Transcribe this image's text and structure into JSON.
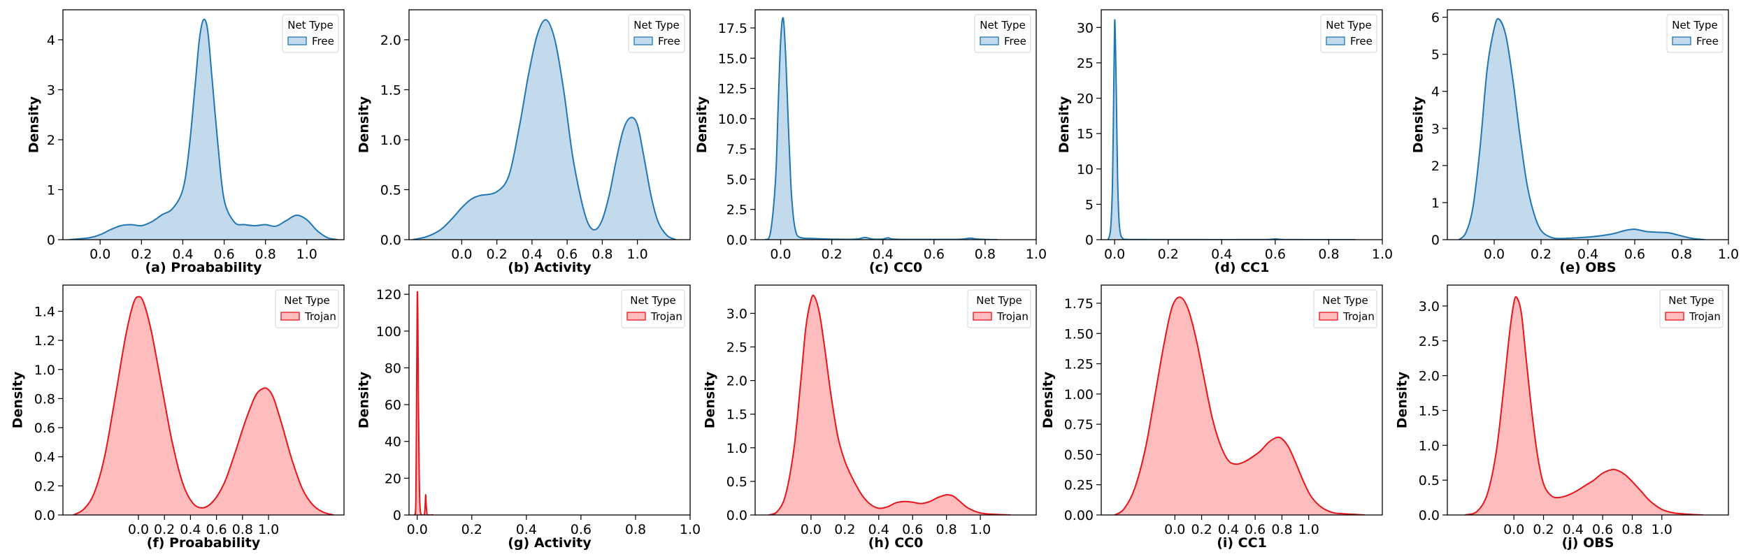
{
  "colors": {
    "free_line": "#1f77b4",
    "free_fill": "#c3d9ec",
    "trojan_line": "#e8141b",
    "trojan_fill": "#ffbcbc"
  },
  "chart_data": [
    {
      "type": "area",
      "kind": "kde",
      "panel": "(a)",
      "xlabel": "(a) Proabability",
      "ylabel": "Density",
      "legend_title": "Net Type",
      "legend_label": "Free",
      "legend_position": "top-right",
      "palette": "free",
      "xlim": [
        -0.18,
        1.18
      ],
      "ylim": [
        0,
        4.6
      ],
      "xticks": [
        0.0,
        0.2,
        0.4,
        0.6,
        0.8,
        1.0
      ],
      "xtick_labels": [
        "0.0",
        "0.2",
        "0.4",
        "0.6",
        "0.8",
        "1.0"
      ],
      "yticks": [
        0,
        1,
        2,
        3,
        4
      ],
      "ytick_labels": [
        "0",
        "1",
        "2",
        "3",
        "4"
      ],
      "x": [
        -0.15,
        -0.05,
        0.0,
        0.05,
        0.1,
        0.15,
        0.2,
        0.25,
        0.3,
        0.35,
        0.4,
        0.43,
        0.46,
        0.48,
        0.5,
        0.52,
        0.54,
        0.57,
        0.6,
        0.65,
        0.7,
        0.75,
        0.8,
        0.85,
        0.9,
        0.95,
        1.0,
        1.05,
        1.1,
        1.15
      ],
      "y": [
        0.0,
        0.04,
        0.1,
        0.2,
        0.28,
        0.3,
        0.28,
        0.36,
        0.5,
        0.62,
        1.0,
        1.8,
        3.1,
        4.0,
        4.4,
        4.2,
        3.3,
        1.9,
        0.8,
        0.35,
        0.3,
        0.28,
        0.3,
        0.27,
        0.38,
        0.49,
        0.4,
        0.18,
        0.04,
        0.0
      ]
    },
    {
      "type": "area",
      "kind": "kde",
      "panel": "(b)",
      "xlabel": "(b) Activity",
      "ylabel": "Density",
      "legend_title": "Net Type",
      "legend_label": "Free",
      "legend_position": "top-right",
      "palette": "free",
      "xlim": [
        -0.3,
        1.3
      ],
      "ylim": [
        0,
        2.3
      ],
      "xticks": [
        0.0,
        0.2,
        0.4,
        0.6,
        0.8,
        1.0
      ],
      "xtick_labels": [
        "0.0",
        "0.2",
        "0.4",
        "0.6",
        "0.8",
        "1.0"
      ],
      "yticks": [
        0.0,
        0.5,
        1.0,
        1.5,
        2.0
      ],
      "ytick_labels": [
        "0.0",
        "0.5",
        "1.0",
        "1.5",
        "2.0"
      ],
      "x": [
        -0.28,
        -0.2,
        -0.12,
        -0.05,
        0.0,
        0.05,
        0.1,
        0.2,
        0.27,
        0.33,
        0.38,
        0.43,
        0.48,
        0.53,
        0.58,
        0.63,
        0.68,
        0.72,
        0.76,
        0.8,
        0.84,
        0.88,
        0.92,
        0.96,
        1.0,
        1.04,
        1.08,
        1.12,
        1.17,
        1.22
      ],
      "y": [
        0.0,
        0.03,
        0.1,
        0.22,
        0.32,
        0.4,
        0.44,
        0.48,
        0.65,
        1.15,
        1.65,
        2.05,
        2.2,
        2.0,
        1.5,
        0.85,
        0.4,
        0.16,
        0.1,
        0.2,
        0.45,
        0.8,
        1.1,
        1.22,
        1.15,
        0.8,
        0.42,
        0.17,
        0.04,
        0.0
      ]
    },
    {
      "type": "area",
      "kind": "kde",
      "panel": "(c)",
      "xlabel": "(c) CC0",
      "ylabel": "Density",
      "legend_title": "Net Type",
      "legend_label": "Free",
      "legend_position": "top-right",
      "palette": "free",
      "xlim": [
        -0.1,
        1.0
      ],
      "ylim": [
        0,
        19.0
      ],
      "xticks": [
        0.0,
        0.2,
        0.4,
        0.6,
        0.8,
        1.0
      ],
      "xtick_labels": [
        "0.0",
        "0.2",
        "0.4",
        "0.6",
        "0.8",
        "1.0"
      ],
      "yticks": [
        0.0,
        2.5,
        5.0,
        7.5,
        10.0,
        12.5,
        15.0,
        17.5
      ],
      "ytick_labels": [
        "0.0",
        "2.5",
        "5.0",
        "7.5",
        "10.0",
        "12.5",
        "15.0",
        "17.5"
      ],
      "x": [
        -0.06,
        -0.04,
        -0.02,
        -0.01,
        0.0,
        0.01,
        0.02,
        0.03,
        0.04,
        0.05,
        0.06,
        0.07,
        0.09,
        0.12,
        0.18,
        0.25,
        0.3,
        0.33,
        0.36,
        0.4,
        0.42,
        0.44,
        0.5,
        0.6,
        0.7,
        0.74,
        0.77,
        0.8,
        0.85
      ],
      "y": [
        0.0,
        0.6,
        5.0,
        11.0,
        16.5,
        18.3,
        15.0,
        9.5,
        4.5,
        1.8,
        0.6,
        0.25,
        0.12,
        0.1,
        0.05,
        0.03,
        0.05,
        0.18,
        0.05,
        0.05,
        0.15,
        0.05,
        0.02,
        0.02,
        0.03,
        0.12,
        0.05,
        0.02,
        0.0
      ]
    },
    {
      "type": "area",
      "kind": "kde",
      "panel": "(d)",
      "xlabel": "(d) CC1",
      "ylabel": "Density",
      "legend_title": "Net Type",
      "legend_label": "Free",
      "legend_position": "top-right",
      "palette": "free",
      "xlim": [
        -0.05,
        1.0
      ],
      "ylim": [
        0,
        32.5
      ],
      "xticks": [
        0.0,
        0.2,
        0.4,
        0.6,
        0.8,
        1.0
      ],
      "xtick_labels": [
        "0.0",
        "0.2",
        "0.4",
        "0.6",
        "0.8",
        "1.0"
      ],
      "yticks": [
        0,
        5,
        10,
        15,
        20,
        25,
        30
      ],
      "ytick_labels": [
        "0",
        "5",
        "10",
        "15",
        "20",
        "25",
        "30"
      ],
      "x": [
        -0.025,
        -0.015,
        -0.008,
        -0.003,
        0.0,
        0.003,
        0.007,
        0.011,
        0.016,
        0.022,
        0.03,
        0.04,
        0.1,
        0.3,
        0.55,
        0.6,
        0.65,
        0.9
      ],
      "y": [
        0.0,
        1.5,
        8.0,
        22.0,
        30.8,
        28.0,
        19.0,
        9.0,
        3.0,
        0.8,
        0.2,
        0.05,
        0.02,
        0.01,
        0.01,
        0.1,
        0.01,
        0.0
      ]
    },
    {
      "type": "area",
      "kind": "kde",
      "panel": "(e)",
      "xlabel": "(e) OBS",
      "ylabel": "Density",
      "legend_title": "Net Type",
      "legend_label": "Free",
      "legend_position": "top-right",
      "palette": "free",
      "xlim": [
        -0.2,
        1.0
      ],
      "ylim": [
        0,
        6.2
      ],
      "xticks": [
        0.0,
        0.2,
        0.4,
        0.6,
        0.8,
        1.0
      ],
      "xtick_labels": [
        "0.0",
        "0.2",
        "0.4",
        "0.6",
        "0.8",
        "1.0"
      ],
      "yticks": [
        0,
        1,
        2,
        3,
        4,
        5,
        6
      ],
      "ytick_labels": [
        "0",
        "1",
        "2",
        "3",
        "4",
        "5",
        "6"
      ],
      "x": [
        -0.15,
        -0.12,
        -0.09,
        -0.06,
        -0.03,
        0.0,
        0.02,
        0.05,
        0.08,
        0.11,
        0.14,
        0.17,
        0.2,
        0.24,
        0.28,
        0.35,
        0.42,
        0.5,
        0.56,
        0.6,
        0.65,
        0.7,
        0.75,
        0.8,
        0.85,
        0.9
      ],
      "y": [
        0.0,
        0.2,
        0.9,
        2.5,
        4.6,
        5.7,
        5.95,
        5.5,
        4.3,
        2.8,
        1.5,
        0.7,
        0.25,
        0.07,
        0.03,
        0.05,
        0.08,
        0.15,
        0.25,
        0.28,
        0.22,
        0.2,
        0.18,
        0.1,
        0.03,
        0.0
      ]
    },
    {
      "type": "area",
      "kind": "kde",
      "panel": "(f)",
      "xlabel": "(f) Proabability",
      "ylabel": "Density",
      "legend_title": "Net Type",
      "legend_label": "Trojan",
      "legend_position": "top-right",
      "palette": "trojan",
      "xlim": [
        -0.58,
        1.58
      ],
      "ylim": [
        0,
        1.58
      ],
      "xticks": [
        0.0,
        0.2,
        0.4,
        0.6,
        0.8,
        1.0
      ],
      "xtick_labels": [
        "0.0",
        "0.2",
        "0.4",
        "0.6",
        "0.8",
        "1.0"
      ],
      "yticks": [
        0.0,
        0.2,
        0.4,
        0.6,
        0.8,
        1.0,
        1.2,
        1.4
      ],
      "ytick_labels": [
        "0.0",
        "0.2",
        "0.4",
        "0.6",
        "0.8",
        "1.0",
        "1.2",
        "1.4"
      ],
      "x": [
        -0.5,
        -0.42,
        -0.34,
        -0.26,
        -0.18,
        -0.1,
        -0.04,
        0.0,
        0.04,
        0.1,
        0.18,
        0.26,
        0.34,
        0.42,
        0.5,
        0.58,
        0.66,
        0.74,
        0.82,
        0.9,
        0.96,
        1.0,
        1.04,
        1.1,
        1.18,
        1.26,
        1.34,
        1.42,
        1.5
      ],
      "y": [
        0.0,
        0.04,
        0.15,
        0.4,
        0.8,
        1.22,
        1.45,
        1.5,
        1.46,
        1.26,
        0.88,
        0.5,
        0.22,
        0.08,
        0.05,
        0.1,
        0.22,
        0.42,
        0.64,
        0.82,
        0.87,
        0.86,
        0.8,
        0.63,
        0.38,
        0.18,
        0.07,
        0.02,
        0.0
      ]
    },
    {
      "type": "area",
      "kind": "kde",
      "panel": "(g)",
      "xlabel": "(g) Activity",
      "ylabel": "Density",
      "legend_title": "Net Type",
      "legend_label": "Trojan",
      "legend_position": "top-right",
      "palette": "trojan",
      "xlim": [
        -0.03,
        1.0
      ],
      "ylim": [
        0,
        125
      ],
      "xticks": [
        0.0,
        0.2,
        0.4,
        0.6,
        0.8,
        1.0
      ],
      "xtick_labels": [
        "0.0",
        "0.2",
        "0.4",
        "0.6",
        "0.8",
        "1.0"
      ],
      "yticks": [
        0,
        20,
        40,
        60,
        80,
        100,
        120
      ],
      "ytick_labels": [
        "0",
        "20",
        "40",
        "60",
        "80",
        "100",
        "120"
      ],
      "x": [
        -0.01,
        -0.005,
        -0.002,
        0.0,
        0.002,
        0.004,
        0.007,
        0.01,
        0.014,
        0.02,
        0.026,
        0.029,
        0.031,
        0.033,
        0.036,
        0.04,
        0.06
      ],
      "y": [
        0.0,
        8.0,
        70.0,
        118.0,
        112.0,
        70.0,
        25.0,
        5.0,
        0.5,
        0.0,
        0.0,
        5.0,
        11.0,
        5.0,
        0.5,
        0.0,
        0.0
      ]
    },
    {
      "type": "area",
      "kind": "kde",
      "panel": "(h)",
      "xlabel": "(h) CC0",
      "ylabel": "Density",
      "legend_title": "Net Type",
      "legend_label": "Trojan",
      "legend_position": "top-right",
      "palette": "trojan",
      "xlim": [
        -0.33,
        1.33
      ],
      "ylim": [
        0,
        3.42
      ],
      "xticks": [
        0.0,
        0.2,
        0.4,
        0.6,
        0.8,
        1.0
      ],
      "xtick_labels": [
        "0.0",
        "0.2",
        "0.4",
        "0.6",
        "0.8",
        "1.0"
      ],
      "yticks": [
        0.0,
        0.5,
        1.0,
        1.5,
        2.0,
        2.5,
        3.0
      ],
      "ytick_labels": [
        "0.0",
        "0.5",
        "1.0",
        "1.5",
        "2.0",
        "2.5",
        "3.0"
      ],
      "x": [
        -0.25,
        -0.2,
        -0.15,
        -0.1,
        -0.06,
        -0.03,
        0.0,
        0.02,
        0.05,
        0.08,
        0.12,
        0.16,
        0.2,
        0.25,
        0.3,
        0.35,
        0.4,
        0.45,
        0.5,
        0.55,
        0.6,
        0.65,
        0.7,
        0.75,
        0.8,
        0.84,
        0.88,
        0.93,
        1.0,
        1.08,
        1.18
      ],
      "y": [
        0.0,
        0.05,
        0.3,
        1.0,
        2.0,
        2.8,
        3.2,
        3.25,
        3.0,
        2.5,
        1.75,
        1.15,
        0.8,
        0.52,
        0.3,
        0.16,
        0.1,
        0.12,
        0.18,
        0.2,
        0.19,
        0.17,
        0.2,
        0.26,
        0.3,
        0.28,
        0.2,
        0.1,
        0.03,
        0.01,
        0.0
      ]
    },
    {
      "type": "area",
      "kind": "kde",
      "panel": "(i)",
      "xlabel": "(i) CC1",
      "ylabel": "Density",
      "legend_title": "Net Type",
      "legend_label": "Trojan",
      "legend_position": "top-right",
      "palette": "trojan",
      "xlim": [
        -0.55,
        1.55
      ],
      "ylim": [
        0,
        1.9
      ],
      "xticks": [
        0.0,
        0.2,
        0.4,
        0.6,
        0.8,
        1.0
      ],
      "xtick_labels": [
        "0.0",
        "0.2",
        "0.4",
        "0.6",
        "0.8",
        "1.0"
      ],
      "yticks": [
        0.0,
        0.25,
        0.5,
        0.75,
        1.0,
        1.25,
        1.5,
        1.75
      ],
      "ytick_labels": [
        "0.00",
        "0.25",
        "0.50",
        "0.75",
        "1.00",
        "1.25",
        "1.50",
        "1.75"
      ],
      "x": [
        -0.45,
        -0.38,
        -0.3,
        -0.22,
        -0.15,
        -0.08,
        -0.02,
        0.04,
        0.1,
        0.16,
        0.22,
        0.28,
        0.34,
        0.4,
        0.46,
        0.52,
        0.58,
        0.64,
        0.7,
        0.76,
        0.8,
        0.85,
        0.9,
        0.96,
        1.02,
        1.1,
        1.18,
        1.26,
        1.34,
        1.42
      ],
      "y": [
        0.0,
        0.05,
        0.22,
        0.55,
        0.98,
        1.42,
        1.72,
        1.8,
        1.7,
        1.45,
        1.12,
        0.8,
        0.58,
        0.45,
        0.42,
        0.44,
        0.48,
        0.53,
        0.6,
        0.64,
        0.63,
        0.56,
        0.44,
        0.28,
        0.15,
        0.06,
        0.02,
        0.01,
        0.005,
        0.0
      ]
    },
    {
      "type": "area",
      "kind": "kde",
      "panel": "(j)",
      "xlabel": "(j) OBS",
      "ylabel": "Density",
      "legend_title": "Net Type",
      "legend_label": "Trojan",
      "legend_position": "top-right",
      "palette": "trojan",
      "xlim": [
        -0.45,
        1.45
      ],
      "ylim": [
        0,
        3.3
      ],
      "xticks": [
        0.0,
        0.2,
        0.4,
        0.6,
        0.8,
        1.0
      ],
      "xtick_labels": [
        "0.0",
        "0.2",
        "0.4",
        "0.6",
        "0.8",
        "1.0"
      ],
      "yticks": [
        0.0,
        0.5,
        1.0,
        1.5,
        2.0,
        2.5,
        3.0
      ],
      "ytick_labels": [
        "0.0",
        "0.5",
        "1.0",
        "1.5",
        "2.0",
        "2.5",
        "3.0"
      ],
      "x": [
        -0.33,
        -0.25,
        -0.18,
        -0.12,
        -0.07,
        -0.03,
        0.0,
        0.02,
        0.05,
        0.08,
        0.12,
        0.16,
        0.2,
        0.25,
        0.3,
        0.36,
        0.42,
        0.48,
        0.54,
        0.6,
        0.66,
        0.7,
        0.75,
        0.8,
        0.86,
        0.92,
        1.0,
        1.08,
        1.18,
        1.28
      ],
      "y": [
        0.0,
        0.05,
        0.3,
        0.9,
        1.8,
        2.6,
        3.05,
        3.12,
        2.9,
        2.3,
        1.5,
        0.85,
        0.45,
        0.28,
        0.25,
        0.28,
        0.34,
        0.42,
        0.5,
        0.6,
        0.65,
        0.64,
        0.58,
        0.48,
        0.34,
        0.2,
        0.08,
        0.03,
        0.01,
        0.0
      ]
    }
  ]
}
